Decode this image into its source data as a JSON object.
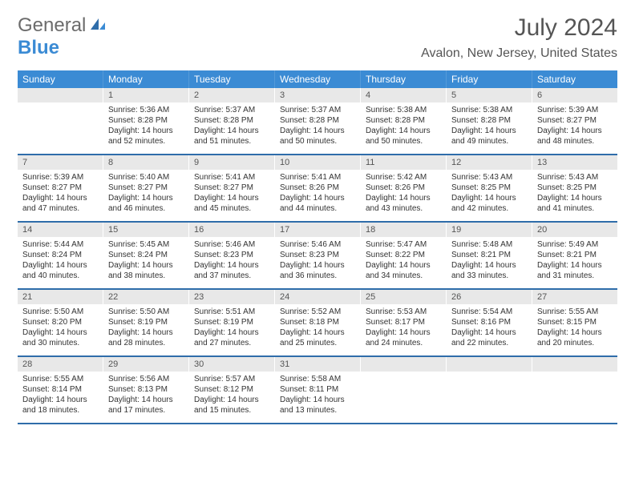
{
  "logo": {
    "text1": "General",
    "text2": "Blue"
  },
  "title": "July 2024",
  "location": "Avalon, New Jersey, United States",
  "header_bg": "#3b8bd4",
  "row_divider": "#2f6daa",
  "daynum_bg": "#e8e8e8",
  "text_color": "#333333",
  "background": "#ffffff",
  "day_headers": [
    "Sunday",
    "Monday",
    "Tuesday",
    "Wednesday",
    "Thursday",
    "Friday",
    "Saturday"
  ],
  "weeks": [
    [
      {
        "empty": true,
        "num": ""
      },
      {
        "num": "1",
        "sunrise": "Sunrise: 5:36 AM",
        "sunset": "Sunset: 8:28 PM",
        "daylight": "Daylight: 14 hours and 52 minutes."
      },
      {
        "num": "2",
        "sunrise": "Sunrise: 5:37 AM",
        "sunset": "Sunset: 8:28 PM",
        "daylight": "Daylight: 14 hours and 51 minutes."
      },
      {
        "num": "3",
        "sunrise": "Sunrise: 5:37 AM",
        "sunset": "Sunset: 8:28 PM",
        "daylight": "Daylight: 14 hours and 50 minutes."
      },
      {
        "num": "4",
        "sunrise": "Sunrise: 5:38 AM",
        "sunset": "Sunset: 8:28 PM",
        "daylight": "Daylight: 14 hours and 50 minutes."
      },
      {
        "num": "5",
        "sunrise": "Sunrise: 5:38 AM",
        "sunset": "Sunset: 8:28 PM",
        "daylight": "Daylight: 14 hours and 49 minutes."
      },
      {
        "num": "6",
        "sunrise": "Sunrise: 5:39 AM",
        "sunset": "Sunset: 8:27 PM",
        "daylight": "Daylight: 14 hours and 48 minutes."
      }
    ],
    [
      {
        "num": "7",
        "sunrise": "Sunrise: 5:39 AM",
        "sunset": "Sunset: 8:27 PM",
        "daylight": "Daylight: 14 hours and 47 minutes."
      },
      {
        "num": "8",
        "sunrise": "Sunrise: 5:40 AM",
        "sunset": "Sunset: 8:27 PM",
        "daylight": "Daylight: 14 hours and 46 minutes."
      },
      {
        "num": "9",
        "sunrise": "Sunrise: 5:41 AM",
        "sunset": "Sunset: 8:27 PM",
        "daylight": "Daylight: 14 hours and 45 minutes."
      },
      {
        "num": "10",
        "sunrise": "Sunrise: 5:41 AM",
        "sunset": "Sunset: 8:26 PM",
        "daylight": "Daylight: 14 hours and 44 minutes."
      },
      {
        "num": "11",
        "sunrise": "Sunrise: 5:42 AM",
        "sunset": "Sunset: 8:26 PM",
        "daylight": "Daylight: 14 hours and 43 minutes."
      },
      {
        "num": "12",
        "sunrise": "Sunrise: 5:43 AM",
        "sunset": "Sunset: 8:25 PM",
        "daylight": "Daylight: 14 hours and 42 minutes."
      },
      {
        "num": "13",
        "sunrise": "Sunrise: 5:43 AM",
        "sunset": "Sunset: 8:25 PM",
        "daylight": "Daylight: 14 hours and 41 minutes."
      }
    ],
    [
      {
        "num": "14",
        "sunrise": "Sunrise: 5:44 AM",
        "sunset": "Sunset: 8:24 PM",
        "daylight": "Daylight: 14 hours and 40 minutes."
      },
      {
        "num": "15",
        "sunrise": "Sunrise: 5:45 AM",
        "sunset": "Sunset: 8:24 PM",
        "daylight": "Daylight: 14 hours and 38 minutes."
      },
      {
        "num": "16",
        "sunrise": "Sunrise: 5:46 AM",
        "sunset": "Sunset: 8:23 PM",
        "daylight": "Daylight: 14 hours and 37 minutes."
      },
      {
        "num": "17",
        "sunrise": "Sunrise: 5:46 AM",
        "sunset": "Sunset: 8:23 PM",
        "daylight": "Daylight: 14 hours and 36 minutes."
      },
      {
        "num": "18",
        "sunrise": "Sunrise: 5:47 AM",
        "sunset": "Sunset: 8:22 PM",
        "daylight": "Daylight: 14 hours and 34 minutes."
      },
      {
        "num": "19",
        "sunrise": "Sunrise: 5:48 AM",
        "sunset": "Sunset: 8:21 PM",
        "daylight": "Daylight: 14 hours and 33 minutes."
      },
      {
        "num": "20",
        "sunrise": "Sunrise: 5:49 AM",
        "sunset": "Sunset: 8:21 PM",
        "daylight": "Daylight: 14 hours and 31 minutes."
      }
    ],
    [
      {
        "num": "21",
        "sunrise": "Sunrise: 5:50 AM",
        "sunset": "Sunset: 8:20 PM",
        "daylight": "Daylight: 14 hours and 30 minutes."
      },
      {
        "num": "22",
        "sunrise": "Sunrise: 5:50 AM",
        "sunset": "Sunset: 8:19 PM",
        "daylight": "Daylight: 14 hours and 28 minutes."
      },
      {
        "num": "23",
        "sunrise": "Sunrise: 5:51 AM",
        "sunset": "Sunset: 8:19 PM",
        "daylight": "Daylight: 14 hours and 27 minutes."
      },
      {
        "num": "24",
        "sunrise": "Sunrise: 5:52 AM",
        "sunset": "Sunset: 8:18 PM",
        "daylight": "Daylight: 14 hours and 25 minutes."
      },
      {
        "num": "25",
        "sunrise": "Sunrise: 5:53 AM",
        "sunset": "Sunset: 8:17 PM",
        "daylight": "Daylight: 14 hours and 24 minutes."
      },
      {
        "num": "26",
        "sunrise": "Sunrise: 5:54 AM",
        "sunset": "Sunset: 8:16 PM",
        "daylight": "Daylight: 14 hours and 22 minutes."
      },
      {
        "num": "27",
        "sunrise": "Sunrise: 5:55 AM",
        "sunset": "Sunset: 8:15 PM",
        "daylight": "Daylight: 14 hours and 20 minutes."
      }
    ],
    [
      {
        "num": "28",
        "sunrise": "Sunrise: 5:55 AM",
        "sunset": "Sunset: 8:14 PM",
        "daylight": "Daylight: 14 hours and 18 minutes."
      },
      {
        "num": "29",
        "sunrise": "Sunrise: 5:56 AM",
        "sunset": "Sunset: 8:13 PM",
        "daylight": "Daylight: 14 hours and 17 minutes."
      },
      {
        "num": "30",
        "sunrise": "Sunrise: 5:57 AM",
        "sunset": "Sunset: 8:12 PM",
        "daylight": "Daylight: 14 hours and 15 minutes."
      },
      {
        "num": "31",
        "sunrise": "Sunrise: 5:58 AM",
        "sunset": "Sunset: 8:11 PM",
        "daylight": "Daylight: 14 hours and 13 minutes."
      },
      {
        "empty": true,
        "num": ""
      },
      {
        "empty": true,
        "num": ""
      },
      {
        "empty": true,
        "num": ""
      }
    ]
  ]
}
